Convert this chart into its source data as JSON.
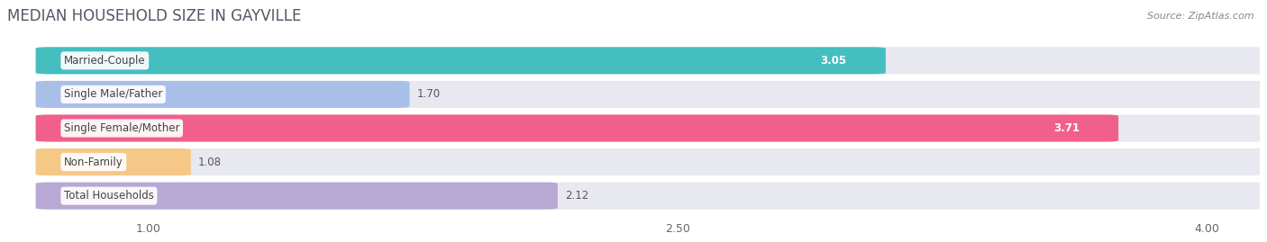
{
  "title": "MEDIAN HOUSEHOLD SIZE IN GAYVILLE",
  "source": "Source: ZipAtlas.com",
  "categories": [
    "Married-Couple",
    "Single Male/Father",
    "Single Female/Mother",
    "Non-Family",
    "Total Households"
  ],
  "values": [
    3.05,
    1.7,
    3.71,
    1.08,
    2.12
  ],
  "bar_colors": [
    "#45bec0",
    "#a8bfe8",
    "#f0608a",
    "#f5c888",
    "#b8a8d4"
  ],
  "value_inside": [
    true,
    false,
    true,
    false,
    false
  ],
  "xmin": 0.72,
  "xlim_left": 0.6,
  "xlim_right": 4.15,
  "xticks": [
    1.0,
    2.5,
    4.0
  ],
  "bar_height": 0.72,
  "bar_gap": 1.0,
  "label_fontsize": 8.5,
  "value_fontsize": 8.5,
  "title_fontsize": 12,
  "background_color": "#ffffff",
  "bar_bg_color": "#e8e8f0"
}
